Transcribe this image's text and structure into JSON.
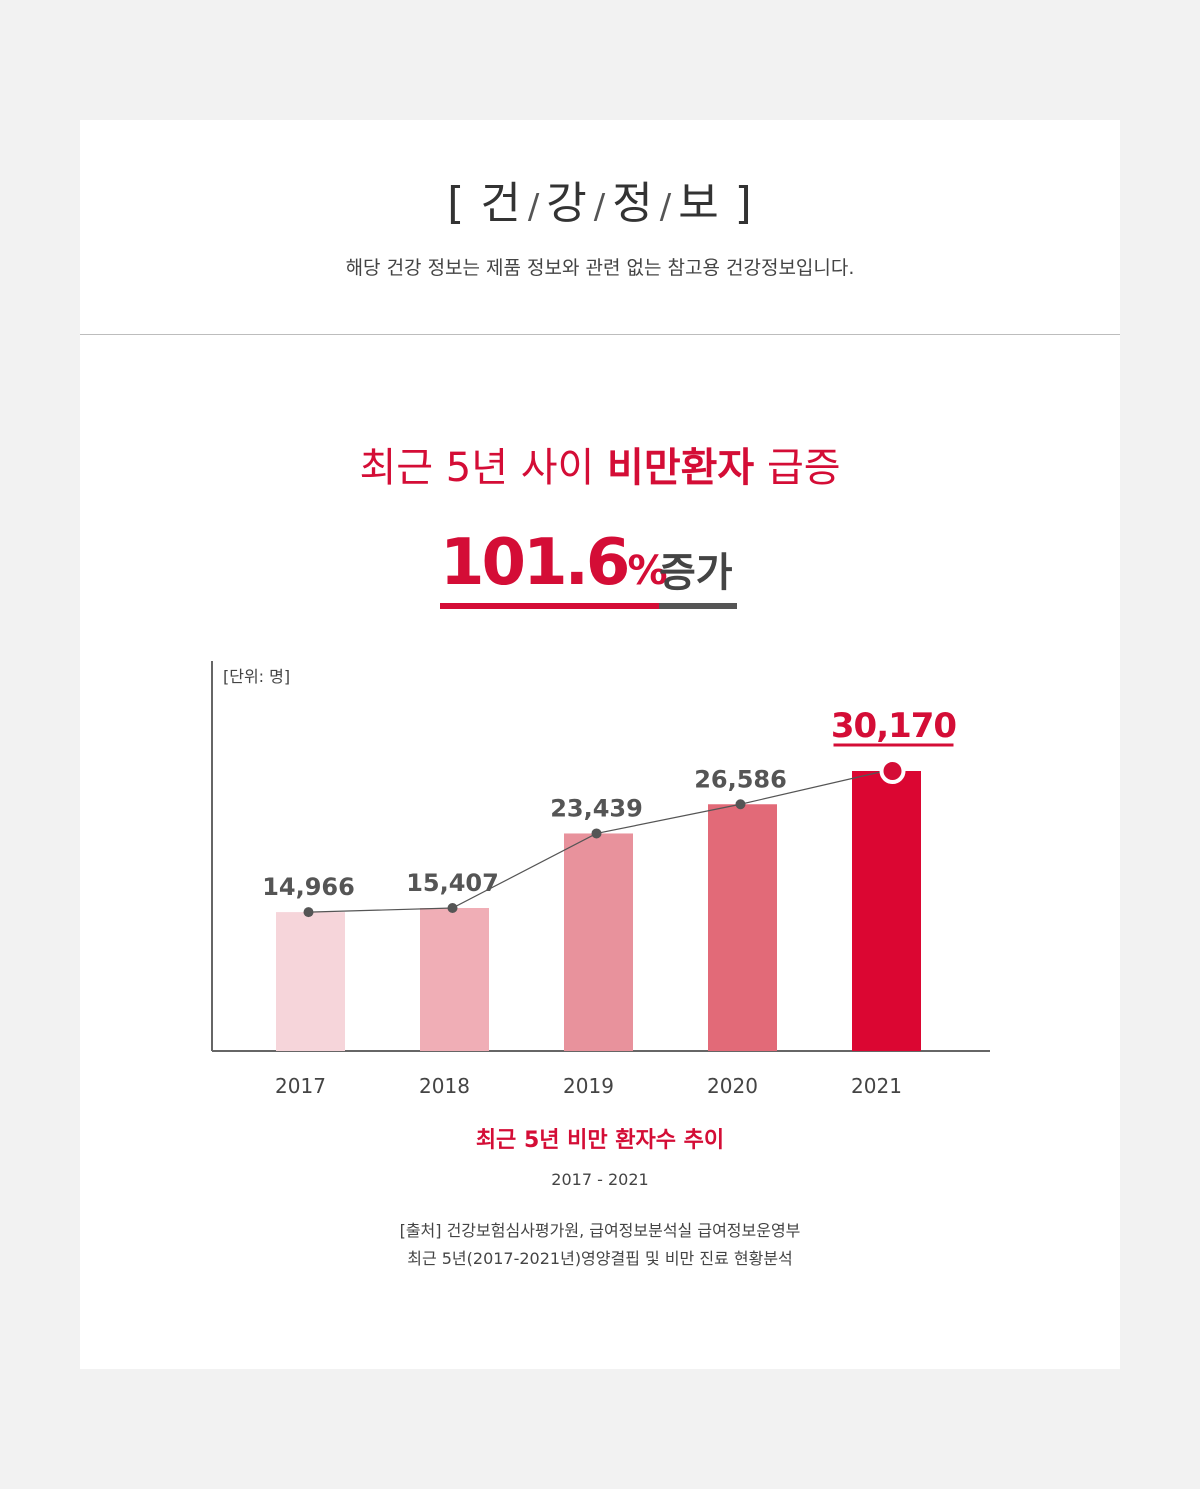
{
  "header": {
    "title_chars": [
      "건",
      "강",
      "정",
      "보"
    ],
    "note": "해당 건강 정보는 제품 정보와 관련 없는 참고용 건강정보입니다."
  },
  "headline": {
    "prefix": "최근 5년 사이 ",
    "emphasis": "비만환자",
    "suffix": " 급증"
  },
  "stat": {
    "number": "101.6",
    "percent_sign": "%",
    "word": "증가"
  },
  "colors": {
    "accent": "#d40d36",
    "bar_2017": "#f6d5da",
    "bar_2018": "#f0aeb6",
    "bar_2019": "#e8929c",
    "bar_2020": "#e26a78",
    "bar_2021": "#db0632",
    "line": "#555555"
  },
  "chart_data": {
    "type": "bar",
    "unit_label": "[단위: 명]",
    "categories": [
      "2017",
      "2018",
      "2019",
      "2020",
      "2021"
    ],
    "values": [
      14966,
      15407,
      23439,
      26586,
      30170
    ],
    "value_labels": [
      "14,966",
      "15,407",
      "23,439",
      "26,586",
      "30,170"
    ],
    "highlight_index": 4,
    "trend_line": true,
    "title": "최근 5년 비만 환자수 추이",
    "subtitle": "2017 - 2021"
  },
  "source": {
    "line1": "[출처] 건강보험심사평가원, 급여정보분석실 급여정보운영부",
    "line2": "최근 5년(2017-2021년)영양결핍 및 비만 진료 현황분석"
  }
}
